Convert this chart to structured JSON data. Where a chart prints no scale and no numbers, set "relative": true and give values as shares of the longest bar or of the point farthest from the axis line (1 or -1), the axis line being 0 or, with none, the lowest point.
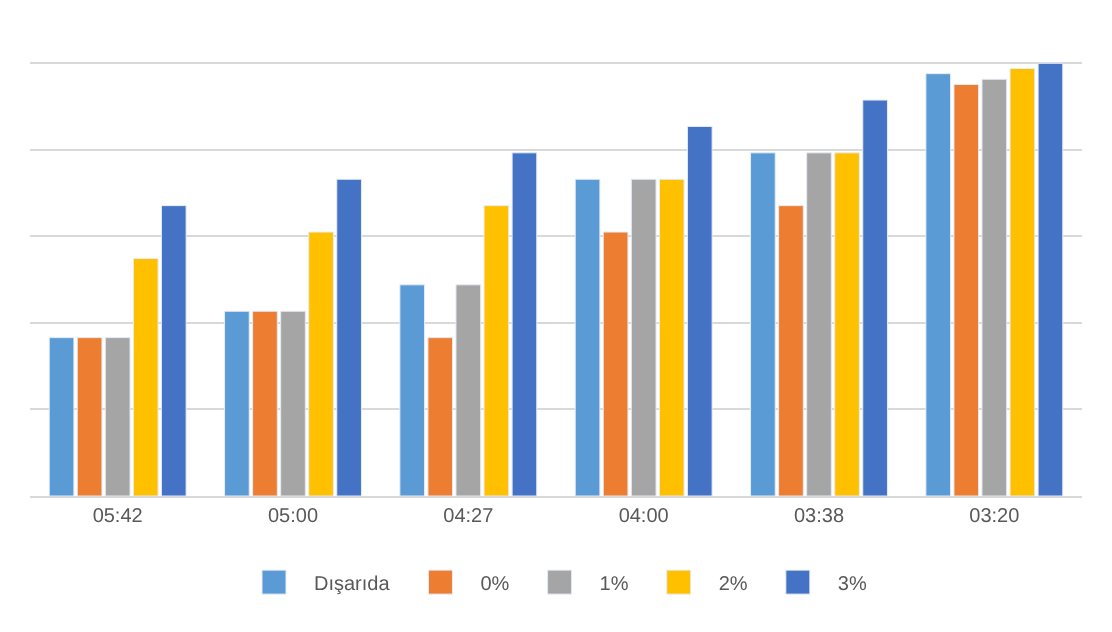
{
  "chart_data": {
    "type": "bar",
    "relative": true,
    "categories": [
      "05:42",
      "05:00",
      "04:27",
      "04:00",
      "03:38",
      "03:20"
    ],
    "series": [
      {
        "name": "Dışarıda",
        "color": "#5b9bd5",
        "values": [
          0.366,
          0.427,
          0.488,
          0.732,
          0.793,
          0.976
        ]
      },
      {
        "name": "0%",
        "color": "#ed7d31",
        "values": [
          0.366,
          0.427,
          0.366,
          0.61,
          0.671,
          0.951
        ]
      },
      {
        "name": "1%",
        "color": "#a5a5a5",
        "values": [
          0.366,
          0.427,
          0.488,
          0.732,
          0.793,
          0.963
        ]
      },
      {
        "name": "2%",
        "color": "#ffc000",
        "values": [
          0.549,
          0.61,
          0.671,
          0.732,
          0.793,
          0.988
        ]
      },
      {
        "name": "3%",
        "color": "#4472c4",
        "values": [
          0.671,
          0.732,
          0.793,
          0.854,
          0.915,
          1
        ]
      }
    ],
    "grid": "y",
    "legend": "bottom"
  }
}
